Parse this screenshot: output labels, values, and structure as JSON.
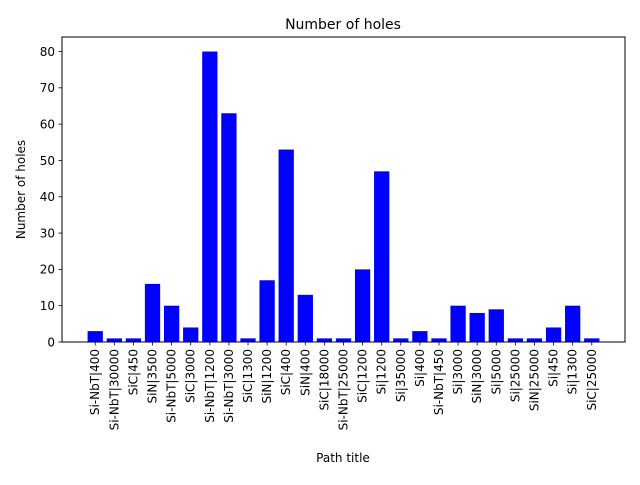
{
  "chart_data": {
    "type": "bar",
    "title": "Number of holes",
    "xlabel": "Path title",
    "ylabel": "Number of holes",
    "categories": [
      "Si-NbT|400",
      "Si-NbT|30000",
      "SiC|450",
      "SiN|3500",
      "Si-NbT|5000",
      "SiC|3000",
      "Si-NbT|1200",
      "Si-NbT|3000",
      "SiC|1300",
      "SiN|1200",
      "SiC|400",
      "SiN|400",
      "SiC|18000",
      "Si-NbT|25000",
      "SiC|1200",
      "Si|1200",
      "Si|35000",
      "Si|400",
      "Si-NbT|450",
      "Si|3000",
      "SiN|3000",
      "Si|5000",
      "Si|25000",
      "SiN|25000",
      "Si|450",
      "Si|1300",
      "SiC|25000"
    ],
    "values": [
      3,
      1,
      1,
      16,
      10,
      4,
      80,
      63,
      1,
      17,
      53,
      13,
      1,
      1,
      20,
      47,
      1,
      3,
      1,
      10,
      8,
      9,
      1,
      1,
      4,
      10,
      1
    ],
    "ylim": [
      0,
      84
    ],
    "yticks": [
      0,
      10,
      20,
      30,
      40,
      50,
      60,
      70,
      80
    ],
    "grid": false,
    "bar_color": "#0000ff"
  }
}
